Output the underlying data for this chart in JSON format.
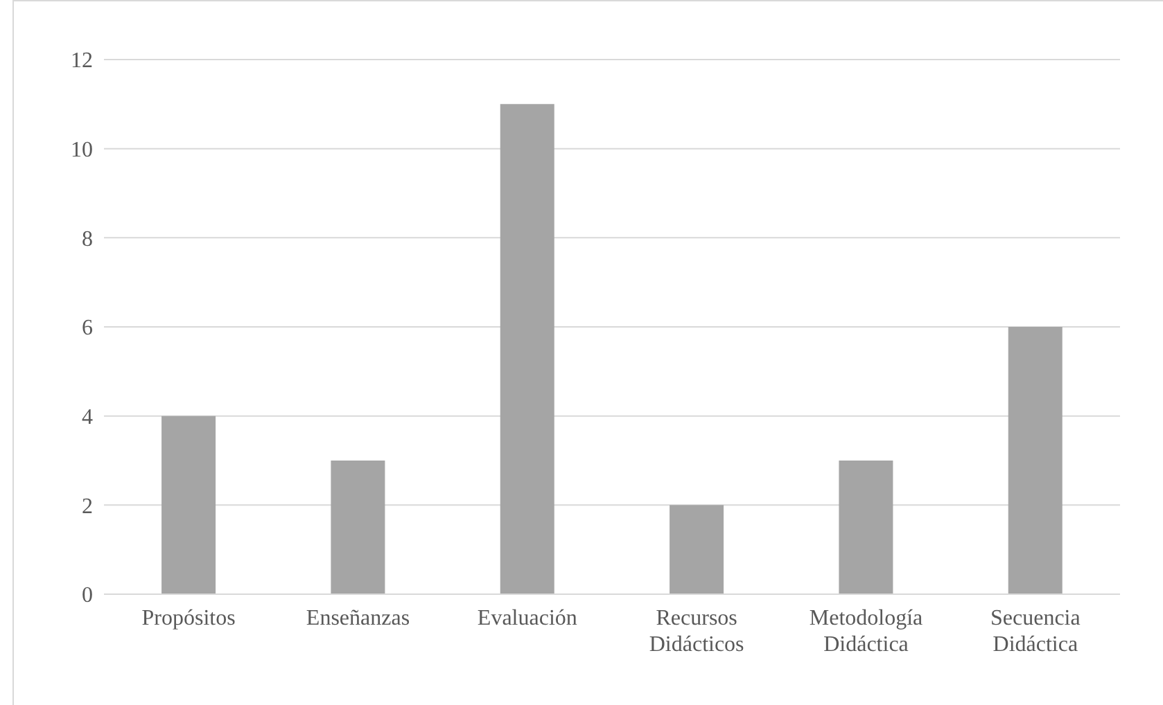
{
  "chart_data": {
    "type": "bar",
    "categories": [
      "Propósitos",
      "Enseñanzas",
      "Evaluación",
      "Recursos Didácticos",
      "Metodología Didáctica",
      "Secuencia Didáctica"
    ],
    "values": [
      4,
      3,
      11,
      2,
      3,
      6
    ],
    "color": "#a5a5a5",
    "ylim": [
      0,
      12
    ],
    "yticks": [
      0,
      2,
      4,
      6,
      8,
      10,
      12
    ],
    "grid": "y",
    "legend": false
  }
}
